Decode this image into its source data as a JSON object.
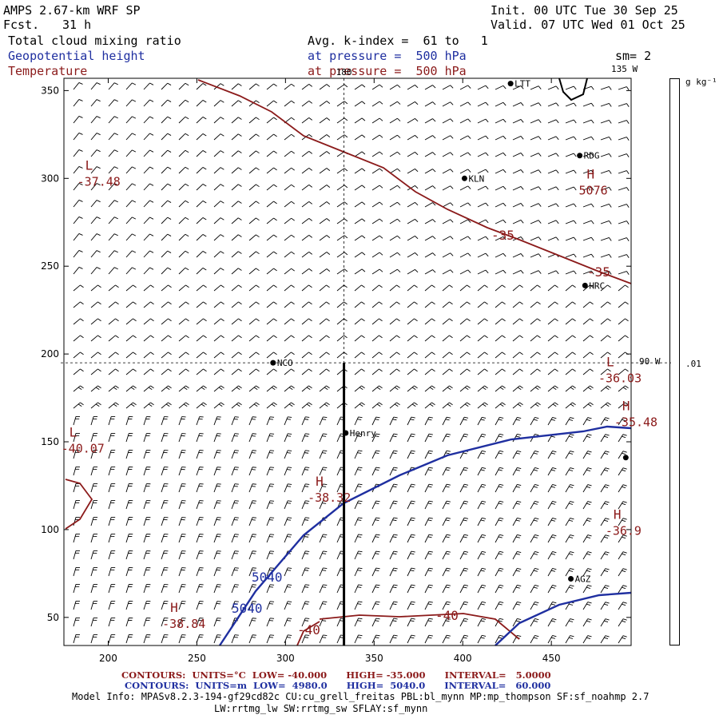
{
  "header": {
    "model": "AMPS 2.67-km WRF SP",
    "forecast_label": "Fcst.",
    "forecast_value": "31 h",
    "init": "Init. 00 UTC Tue 30 Sep 25",
    "valid": "Valid. 07 UTC Wed 01 Oct 25",
    "field1": "Total cloud mixing ratio",
    "field2": "Geopotential height",
    "field3": "Temperature",
    "avg": "Avg. k-index =  61 to   1",
    "pressure1": "at pressure =  500 hPa",
    "pressure2": "at pressure =  500 hPa",
    "sm": "sm= 2"
  },
  "chart_data": {
    "type": "contour",
    "title": "Total cloud mixing ratio / Geopotential height / Temperature at 500 hPa",
    "xlim": [
      175,
      495
    ],
    "ylim": [
      34,
      357
    ],
    "x_ticks": [
      200,
      250,
      300,
      350,
      400,
      450
    ],
    "y_ticks": [
      50,
      100,
      150,
      200,
      250,
      300,
      350
    ],
    "ref_lines": [
      {
        "type": "vertical",
        "x": 333,
        "label": "180"
      },
      {
        "type": "horizontal",
        "y": 195,
        "label": "90 W"
      }
    ],
    "top_label": "135 W",
    "stations": [
      {
        "name": "LTT",
        "x": 427,
        "y": 354
      },
      {
        "name": "RDG",
        "x": 466,
        "y": 313
      },
      {
        "name": "KLN",
        "x": 401,
        "y": 300
      },
      {
        "name": "HRC",
        "x": 469,
        "y": 239
      },
      {
        "name": "NCO",
        "x": 293,
        "y": 195
      },
      {
        "name": "Henry",
        "x": 334,
        "y": 155
      },
      {
        "name": "AGZ",
        "x": 461,
        "y": 72
      },
      {
        "name": "",
        "x": 492,
        "y": 141
      }
    ],
    "extrema": [
      {
        "kind": "L",
        "value": "-37.48",
        "x": 187,
        "y": 305,
        "color": "red"
      },
      {
        "kind": "H",
        "value": "5076",
        "x": 470,
        "y": 300,
        "color": "red"
      },
      {
        "kind": "L",
        "value": "-36.03",
        "x": 481,
        "y": 193,
        "color": "red"
      },
      {
        "kind": "H",
        "value": "-35.48",
        "x": 490,
        "y": 168,
        "color": "red"
      },
      {
        "kind": "L",
        "value": "-40.07",
        "x": 178,
        "y": 153,
        "color": "red"
      },
      {
        "kind": "H",
        "value": "-38.32",
        "x": 317,
        "y": 125,
        "color": "red"
      },
      {
        "kind": "H",
        "value": "-36.9",
        "x": 485,
        "y": 106,
        "color": "red"
      },
      {
        "kind": "H",
        "value": "-38.84",
        "x": 235,
        "y": 53,
        "color": "red"
      }
    ],
    "temperature_contour_labels": [
      "-35",
      "-35",
      "-40",
      "-40"
    ],
    "height_contour_labels": [
      "5040",
      "5040"
    ],
    "colorbar": {
      "unit": "g kg⁻¹",
      "tick": ".01"
    }
  },
  "footer": {
    "temp_contours": "CONTOURS:  UNITS=°C  LOW= -40.000      HIGH= -35.000      INTERVAL=   5.0000",
    "height_contours": "CONTOURS:  UNITS=m  LOW=  4980.0      HIGH=  5040.0      INTERVAL=   60.000",
    "model_info": "Model Info: MPASv8.2.3-194-gf29cd82c CU:cu_grell_freitas PBL:bl_mynn MP:mp_thompson SF:sf_noahmp 2.7",
    "model_info2": "LW:rrtmg_lw SW:rrtmg_sw SFLAY:sf_mynn"
  },
  "colors": {
    "temperature": "#8b1a1a",
    "height": "#1f2fa0",
    "wind": "#000000"
  }
}
